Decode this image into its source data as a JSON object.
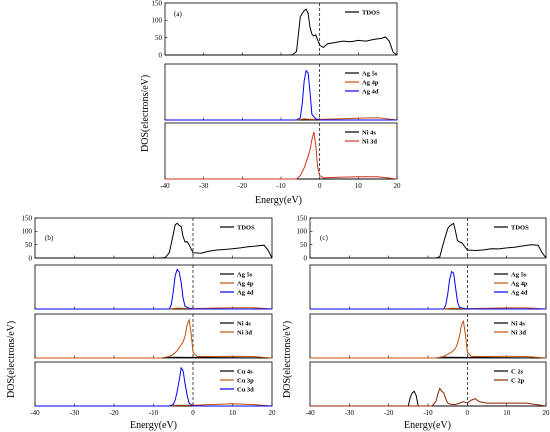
{
  "colors": {
    "black": "#000000",
    "blue": "#0000ff",
    "orange": "#c0500a",
    "red": "#d2321e",
    "darkred": "#8b2500"
  },
  "figure_a": {
    "panel_id": "(a)",
    "xlabel": "Energy(eV)",
    "ylabel": "DOS(electrons/eV)",
    "xticks": [
      "-40",
      "-30",
      "-20",
      "-10",
      "0",
      "10",
      "20"
    ]
  },
  "figure_b": {
    "panel_id": "(b)",
    "xlabel": "Energy(eV)",
    "ylabel": "DOS(electrons/eV)",
    "xticks": [
      "-40",
      "-30",
      "-20",
      "-10",
      "0",
      "10",
      "20"
    ]
  },
  "figure_c": {
    "panel_id": "(c)",
    "xlabel": "Energy(eV)",
    "ylabel": "DOS(electrons/eV)",
    "xticks": [
      "-40",
      "-30",
      "-20",
      "-10",
      "0",
      "10",
      "20"
    ]
  },
  "chart_data": [
    {
      "id": "a-1",
      "type": "line",
      "xlim": [
        -40,
        20
      ],
      "ylim": [
        0,
        150
      ],
      "yticks": [
        "0",
        "50",
        "100",
        "150"
      ],
      "series": [
        {
          "name": "TDOS",
          "color": "#000000",
          "x": [
            -40,
            -8,
            -7,
            -6,
            -5.5,
            -5,
            -4.5,
            -4,
            -3.5,
            -3,
            -2.5,
            -2,
            -1.5,
            -1,
            0,
            1,
            2,
            4,
            6,
            8,
            10,
            12,
            14,
            16,
            17,
            18,
            19,
            20
          ],
          "y": [
            0,
            0,
            1,
            10,
            60,
            110,
            120,
            128,
            132,
            120,
            80,
            60,
            55,
            58,
            28,
            22,
            32,
            36,
            40,
            38,
            42,
            40,
            45,
            48,
            52,
            40,
            8,
            0
          ]
        }
      ]
    },
    {
      "id": "a-2",
      "type": "line",
      "xlim": [
        -40,
        20
      ],
      "ylim": [
        0,
        5
      ],
      "series": [
        {
          "name": "Ag 5s",
          "color": "#000000",
          "x": [
            -40,
            20
          ],
          "y": [
            0,
            0
          ]
        },
        {
          "name": "Ag 4p",
          "color": "#c0500a",
          "x": [
            -40,
            -6,
            -4,
            -2,
            0,
            5,
            10,
            15,
            20
          ],
          "y": [
            0,
            0,
            0.1,
            0.05,
            0.05,
            0.1,
            0.15,
            0.2,
            0
          ]
        },
        {
          "name": "Ag 4d",
          "color": "#0000ff",
          "x": [
            -40,
            -6,
            -5,
            -4.5,
            -4,
            -3.5,
            -3,
            -2.5,
            -2,
            -1,
            0,
            20
          ],
          "y": [
            0,
            0,
            0.2,
            1.5,
            3.5,
            4.4,
            4.2,
            2.5,
            0.5,
            0.1,
            0,
            0
          ]
        }
      ]
    },
    {
      "id": "a-3",
      "type": "line",
      "xlim": [
        -40,
        20
      ],
      "ylim": [
        0,
        5
      ],
      "series": [
        {
          "name": "Ni 4s",
          "color": "#000000",
          "x": [
            -40,
            20
          ],
          "y": [
            0,
            0
          ]
        },
        {
          "name": "Ni 3d",
          "color": "#d2321e",
          "x": [
            -40,
            -6,
            -5,
            -4,
            -3,
            -2.5,
            -2,
            -1.5,
            -1,
            -0.5,
            0,
            1,
            5,
            10,
            15,
            20
          ],
          "y": [
            0,
            0,
            0.3,
            1.0,
            2.0,
            2.6,
            3.5,
            4.2,
            3.0,
            1.0,
            0.3,
            0.1,
            0.15,
            0.2,
            0.2,
            0
          ]
        }
      ]
    },
    {
      "id": "b-1",
      "type": "line",
      "xlim": [
        -40,
        20
      ],
      "ylim": [
        0,
        150
      ],
      "yticks": [
        "0",
        "50",
        "100",
        "150"
      ],
      "series": [
        {
          "name": "TDOS",
          "color": "#000000",
          "x": [
            -40,
            -8,
            -7,
            -6,
            -5,
            -4.5,
            -4,
            -3.5,
            -3,
            -2.5,
            -2,
            -1.5,
            -1,
            0,
            2,
            4,
            6,
            8,
            10,
            12,
            14,
            16,
            18,
            19,
            20
          ],
          "y": [
            0,
            0,
            2,
            20,
            90,
            125,
            130,
            122,
            118,
            80,
            60,
            62,
            50,
            20,
            18,
            25,
            30,
            32,
            35,
            38,
            42,
            45,
            48,
            30,
            0
          ]
        }
      ]
    },
    {
      "id": "b-2",
      "type": "line",
      "xlim": [
        -40,
        20
      ],
      "ylim": [
        0,
        5
      ],
      "series": [
        {
          "name": "Ag 5s",
          "color": "#000000",
          "x": [
            -40,
            20
          ],
          "y": [
            0,
            0
          ]
        },
        {
          "name": "Ag 4p",
          "color": "#c0500a",
          "x": [
            -40,
            -6,
            -4,
            0,
            5,
            10,
            15,
            20
          ],
          "y": [
            0,
            0,
            0.1,
            0.05,
            0.1,
            0.15,
            0.15,
            0
          ]
        },
        {
          "name": "Ag 4d",
          "color": "#0000ff",
          "x": [
            -40,
            -6,
            -5.5,
            -5,
            -4.5,
            -4,
            -3.5,
            -3,
            -2.5,
            -2,
            -1,
            0,
            20
          ],
          "y": [
            0,
            0,
            0.5,
            2.0,
            3.8,
            4.5,
            4.2,
            3.0,
            1.2,
            0.3,
            0.1,
            0,
            0
          ]
        }
      ]
    },
    {
      "id": "b-3",
      "type": "line",
      "xlim": [
        -40,
        20
      ],
      "ylim": [
        0,
        6
      ],
      "series": [
        {
          "name": "Ni 4s",
          "color": "#000000",
          "x": [
            -40,
            -8,
            -6,
            20
          ],
          "y": [
            0,
            0,
            0.1,
            0
          ]
        },
        {
          "name": "Ni 3d",
          "color": "#c0500a",
          "x": [
            -40,
            -8,
            -6,
            -5,
            -4,
            -3,
            -2.5,
            -2,
            -1.5,
            -1,
            -0.5,
            0,
            1,
            5,
            10,
            15,
            20
          ],
          "y": [
            0,
            0,
            0.2,
            0.5,
            1.0,
            1.8,
            2.2,
            3.0,
            4.5,
            5.2,
            3.5,
            0.8,
            0.2,
            0.2,
            0.25,
            0.2,
            0
          ]
        }
      ]
    },
    {
      "id": "b-4",
      "type": "line",
      "xlim": [
        -40,
        20
      ],
      "ylim": [
        0,
        6
      ],
      "series": [
        {
          "name": "Cu 4s",
          "color": "#000000",
          "x": [
            -40,
            20
          ],
          "y": [
            0,
            0
          ]
        },
        {
          "name": "Cu 3p",
          "color": "#c0500a",
          "x": [
            -40,
            -6,
            -4,
            0,
            5,
            10,
            15,
            20
          ],
          "y": [
            0,
            0,
            0.1,
            0.1,
            0.2,
            0.3,
            0.2,
            0
          ]
        },
        {
          "name": "Cu 3d",
          "color": "#0000ff",
          "x": [
            -40,
            -6,
            -5,
            -4.5,
            -4,
            -3.5,
            -3,
            -2.5,
            -2,
            -1.5,
            -1,
            0,
            20
          ],
          "y": [
            0,
            0,
            0.2,
            0.8,
            2.0,
            3.5,
            5.2,
            4.8,
            3.0,
            1.5,
            0.4,
            0,
            0
          ]
        }
      ]
    },
    {
      "id": "c-1",
      "type": "line",
      "xlim": [
        -40,
        20
      ],
      "ylim": [
        0,
        150
      ],
      "yticks": [
        "0",
        "50",
        "100",
        "150"
      ],
      "series": [
        {
          "name": "TDOS",
          "color": "#000000",
          "x": [
            -40,
            -8,
            -7,
            -6,
            -5,
            -4.5,
            -4,
            -3.5,
            -3,
            -2.5,
            -2,
            -1.5,
            -1,
            0,
            2,
            4,
            6,
            8,
            10,
            12,
            14,
            16,
            18,
            19,
            20
          ],
          "y": [
            0,
            0,
            5,
            60,
            110,
            120,
            125,
            130,
            100,
            65,
            60,
            58,
            50,
            30,
            28,
            30,
            35,
            34,
            38,
            40,
            45,
            50,
            48,
            20,
            0
          ]
        }
      ]
    },
    {
      "id": "c-2",
      "type": "line",
      "xlim": [
        -40,
        20
      ],
      "ylim": [
        0,
        6
      ],
      "series": [
        {
          "name": "Ag 5s",
          "color": "#000000",
          "x": [
            -40,
            20
          ],
          "y": [
            0,
            0
          ]
        },
        {
          "name": "Ag 4p",
          "color": "#c0500a",
          "x": [
            -40,
            -6,
            -4,
            0,
            5,
            10,
            15,
            20
          ],
          "y": [
            0,
            0,
            0.1,
            0.05,
            0.1,
            0.15,
            0.15,
            0
          ]
        },
        {
          "name": "Ag 4d",
          "color": "#0000ff",
          "x": [
            -40,
            -6,
            -5.5,
            -5,
            -4.5,
            -4,
            -3.5,
            -3,
            -2.5,
            -2,
            -1,
            0,
            20
          ],
          "y": [
            0,
            0,
            0.5,
            2.0,
            4.0,
            5.1,
            4.9,
            3.0,
            1.0,
            0.2,
            0.1,
            0,
            0
          ]
        }
      ]
    },
    {
      "id": "c-3",
      "type": "line",
      "xlim": [
        -40,
        20
      ],
      "ylim": [
        0,
        6
      ],
      "series": [
        {
          "name": "Ni 4s",
          "color": "#000000",
          "x": [
            -40,
            -8,
            -6,
            20
          ],
          "y": [
            0,
            0,
            0.1,
            0
          ]
        },
        {
          "name": "Ni 3d",
          "color": "#c0500a",
          "x": [
            -40,
            -8,
            -6,
            -5,
            -4,
            -3,
            -2.5,
            -2,
            -1.5,
            -1,
            -0.5,
            0,
            1,
            5,
            10,
            15,
            20
          ],
          "y": [
            0,
            0,
            0.2,
            0.5,
            0.8,
            1.3,
            2.0,
            3.0,
            4.5,
            5.0,
            3.2,
            0.8,
            0.2,
            0.2,
            0.25,
            0.2,
            0
          ]
        }
      ]
    },
    {
      "id": "c-4",
      "type": "line",
      "xlim": [
        -40,
        20
      ],
      "ylim": [
        0,
        3
      ],
      "series": [
        {
          "name": "C 2s",
          "color": "#000000",
          "x": [
            -40,
            -15,
            -14.5,
            -14,
            -13.5,
            -13,
            -12.5,
            20
          ],
          "y": [
            0,
            0,
            0.6,
            0.9,
            1.0,
            0.7,
            0,
            0
          ]
        },
        {
          "name": "C 2p",
          "color": "#8b2500",
          "x": [
            -40,
            -9,
            -8,
            -7.5,
            -7,
            -6.5,
            -6,
            -5.5,
            -5,
            -4,
            -3,
            -2,
            -1,
            0,
            1,
            2,
            3,
            5,
            10,
            15,
            20
          ],
          "y": [
            0,
            0,
            0.3,
            0.8,
            1.2,
            1.0,
            0.9,
            0.5,
            0.2,
            0.1,
            0.1,
            0.2,
            0.3,
            0.2,
            0.4,
            0.5,
            0.3,
            0.2,
            0.2,
            0.2,
            0
          ]
        }
      ]
    }
  ]
}
